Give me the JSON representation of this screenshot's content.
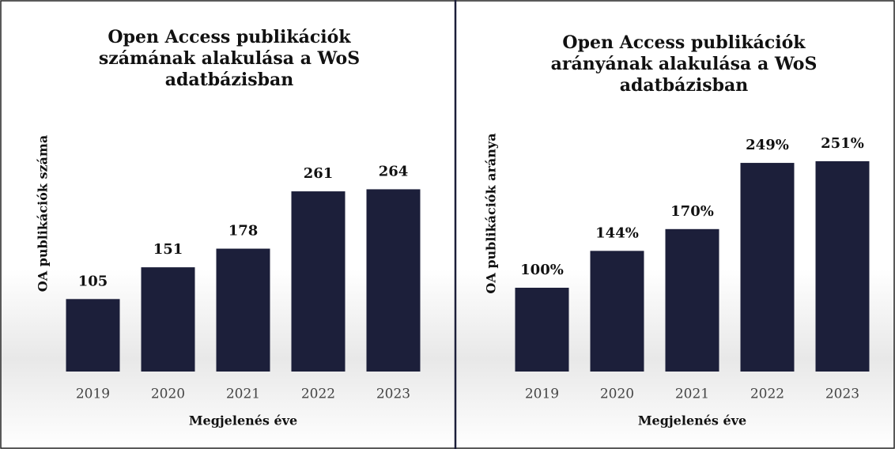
{
  "chart_data": [
    {
      "type": "bar",
      "title": [
        "Open Access publikációk",
        "számának alakulása a WoS",
        "adatbázisban"
      ],
      "x_label": "Megjelenés éve",
      "y_label": "OA publikációk száma",
      "categories": [
        "2019",
        "2020",
        "2021",
        "2022",
        "2023"
      ],
      "values": [
        105,
        151,
        178,
        261,
        264
      ],
      "color": "#1c1f3a",
      "ylim": [
        0,
        300
      ]
    },
    {
      "type": "bar",
      "title": [
        "Open Access publikációk",
        "arányának alakulása a WoS",
        "adatbázisban"
      ],
      "x_label": "Megjelenés éve",
      "y_label": "OA publikációk aránya",
      "categories": [
        "2019",
        "2020",
        "2021",
        "2022",
        "2023"
      ],
      "values": [
        100,
        144,
        170,
        249,
        251
      ],
      "value_labels": [
        "100%",
        "144%",
        "170%",
        "249%",
        "251%"
      ],
      "color": "#1c1f3a",
      "ylim": [
        0,
        300
      ]
    }
  ]
}
